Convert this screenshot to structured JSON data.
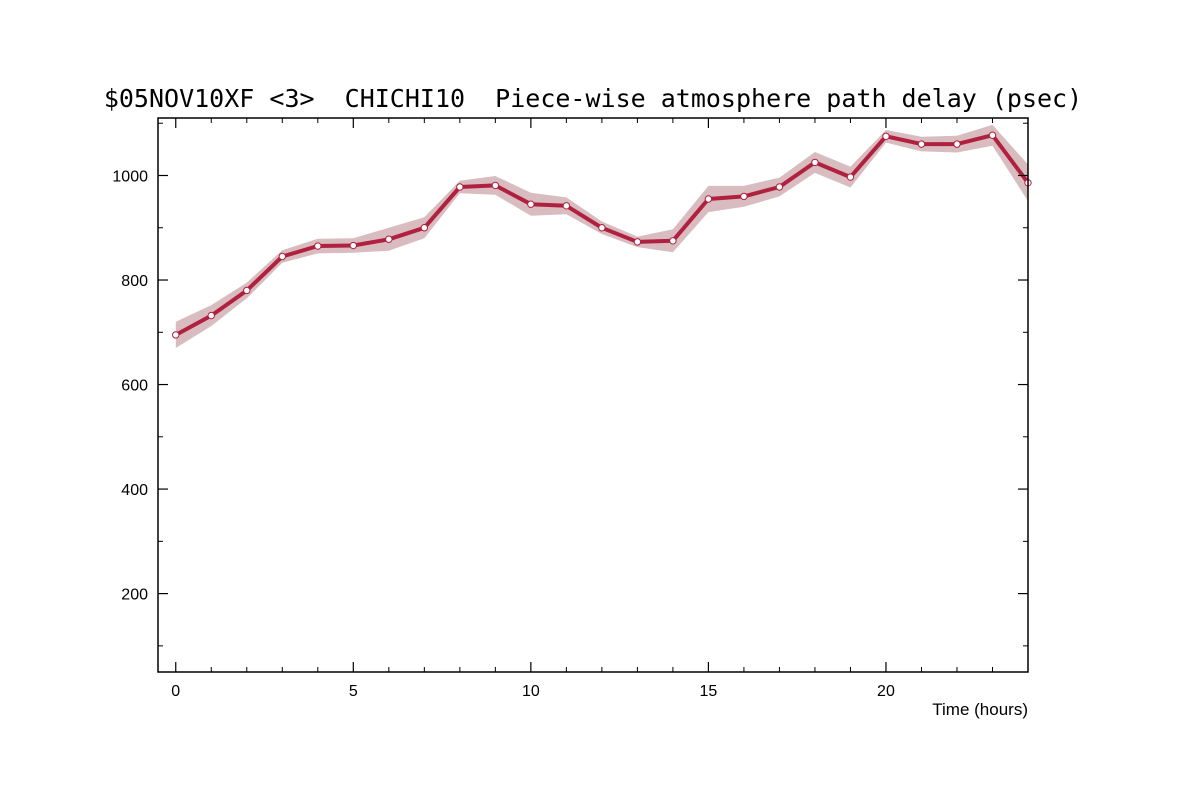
{
  "chart_data": {
    "type": "line",
    "title": "$05NOV10XF <3>  CHICHI10  Piece-wise atmosphere path delay (psec)",
    "xlabel": "Time (hours)",
    "ylabel": "",
    "xlim": [
      -0.5,
      24
    ],
    "ylim": [
      50,
      1110
    ],
    "x_ticks": [
      0,
      5,
      10,
      15,
      20
    ],
    "y_ticks": [
      200,
      400,
      600,
      800,
      1000
    ],
    "grid": false,
    "legend": "none",
    "colors": {
      "line": "#b0203f",
      "band": "#d8bcc0",
      "marker_fill": "#ffffff",
      "axis": "#000000"
    },
    "series": [
      {
        "x": [
          0,
          1,
          2,
          3,
          4,
          5,
          6,
          7,
          8,
          9,
          10,
          11,
          12,
          13,
          14,
          15,
          16,
          17,
          18,
          19,
          20,
          21,
          22,
          23,
          24
        ],
        "y": [
          695,
          732,
          780,
          845,
          865,
          866,
          878,
          900,
          978,
          981,
          945,
          942,
          900,
          873,
          875,
          955,
          960,
          978,
          1025,
          997,
          1075,
          1060,
          1060,
          1077,
          986
        ],
        "y_err": [
          25,
          20,
          15,
          12,
          14,
          14,
          22,
          20,
          12,
          18,
          22,
          16,
          12,
          10,
          22,
          25,
          20,
          18,
          20,
          20,
          12,
          14,
          16,
          20,
          35
        ]
      }
    ]
  }
}
